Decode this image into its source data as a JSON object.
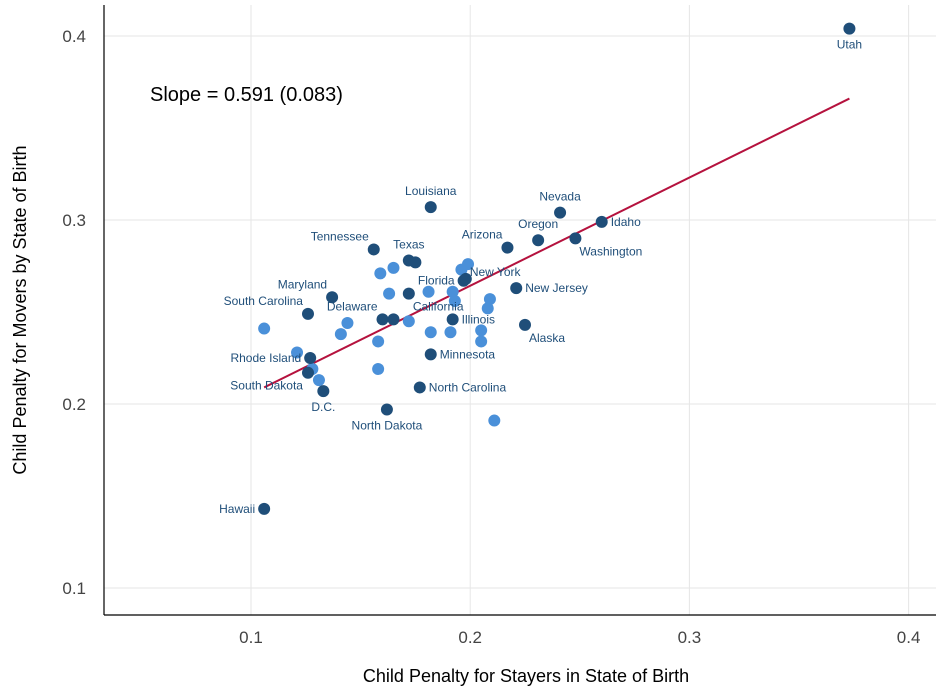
{
  "chart_data": {
    "type": "scatter",
    "title": "",
    "xlabel": "Child Penalty for Stayers in State of Birth",
    "ylabel": "Child Penalty for Movers by State of Birth",
    "xlim": [
      0.03,
      0.41
    ],
    "ylim": [
      0.08,
      0.415
    ],
    "x_ticks": [
      0.1,
      0.2,
      0.3,
      0.4
    ],
    "y_ticks": [
      0.1,
      0.2,
      0.3,
      0.4
    ],
    "x_tick_labels": [
      "0.1",
      "0.2",
      "0.3",
      "0.4"
    ],
    "y_tick_labels": [
      "0.1",
      "0.2",
      "0.3",
      "0.4"
    ],
    "grid": true,
    "annotation": "Slope = 0.591 (0.083)",
    "fit_line": {
      "x": [
        0.106,
        0.373
      ],
      "y": [
        0.209,
        0.366
      ],
      "color": "#b5123e"
    },
    "colors": {
      "labeled": "#1f4e79",
      "unlabeled": "#4a90d9",
      "label_text": "#1f4e79"
    },
    "labeled_points": [
      {
        "label": "Utah",
        "x": 0.373,
        "y": 0.404,
        "pos": "below"
      },
      {
        "label": "Louisiana",
        "x": 0.182,
        "y": 0.307,
        "pos": "above"
      },
      {
        "label": "Nevada",
        "x": 0.241,
        "y": 0.304,
        "pos": "above"
      },
      {
        "label": "Idaho",
        "x": 0.26,
        "y": 0.299,
        "pos": "right"
      },
      {
        "label": "Oregon",
        "x": 0.231,
        "y": 0.289,
        "pos": "above"
      },
      {
        "label": "Washington",
        "x": 0.248,
        "y": 0.29,
        "pos": "below-right"
      },
      {
        "label": "Arizona",
        "x": 0.217,
        "y": 0.285,
        "pos": "above-left"
      },
      {
        "label": "Tennessee",
        "x": 0.156,
        "y": 0.284,
        "pos": "above-left"
      },
      {
        "label": "Texas",
        "x": 0.172,
        "y": 0.278,
        "pos": "above"
      },
      {
        "label": "",
        "x": 0.175,
        "y": 0.277,
        "pos": "none"
      },
      {
        "label": "Florida",
        "x": 0.197,
        "y": 0.267,
        "pos": "left"
      },
      {
        "label": "New York",
        "x": 0.198,
        "y": 0.268,
        "pos": "right-up"
      },
      {
        "label": "New Jersey",
        "x": 0.221,
        "y": 0.263,
        "pos": "right"
      },
      {
        "label": "Maryland",
        "x": 0.137,
        "y": 0.258,
        "pos": "above-left"
      },
      {
        "label": "South Carolina",
        "x": 0.126,
        "y": 0.249,
        "pos": "above-left"
      },
      {
        "label": "Delaware",
        "x": 0.16,
        "y": 0.246,
        "pos": "above-left"
      },
      {
        "label": "",
        "x": 0.165,
        "y": 0.246,
        "pos": "none"
      },
      {
        "label": "California",
        "x": 0.172,
        "y": 0.26,
        "pos": "below-right"
      },
      {
        "label": "Illinois",
        "x": 0.192,
        "y": 0.246,
        "pos": "right"
      },
      {
        "label": "Alaska",
        "x": 0.225,
        "y": 0.243,
        "pos": "below-right"
      },
      {
        "label": "Minnesota",
        "x": 0.182,
        "y": 0.227,
        "pos": "right"
      },
      {
        "label": "Rhode Island",
        "x": 0.127,
        "y": 0.225,
        "pos": "left"
      },
      {
        "label": "South Dakota",
        "x": 0.126,
        "y": 0.217,
        "pos": "below-left"
      },
      {
        "label": "North Carolina",
        "x": 0.177,
        "y": 0.209,
        "pos": "right"
      },
      {
        "label": "D.C.",
        "x": 0.133,
        "y": 0.207,
        "pos": "below"
      },
      {
        "label": "North Dakota",
        "x": 0.162,
        "y": 0.197,
        "pos": "below"
      },
      {
        "label": "Hawaii",
        "x": 0.106,
        "y": 0.143,
        "pos": "left"
      }
    ],
    "unlabeled_points": [
      {
        "x": 0.106,
        "y": 0.241
      },
      {
        "x": 0.121,
        "y": 0.228
      },
      {
        "x": 0.128,
        "y": 0.219
      },
      {
        "x": 0.131,
        "y": 0.213
      },
      {
        "x": 0.141,
        "y": 0.238
      },
      {
        "x": 0.144,
        "y": 0.244
      },
      {
        "x": 0.158,
        "y": 0.234
      },
      {
        "x": 0.158,
        "y": 0.219
      },
      {
        "x": 0.159,
        "y": 0.271
      },
      {
        "x": 0.163,
        "y": 0.26
      },
      {
        "x": 0.165,
        "y": 0.274
      },
      {
        "x": 0.172,
        "y": 0.245
      },
      {
        "x": 0.181,
        "y": 0.261
      },
      {
        "x": 0.182,
        "y": 0.239
      },
      {
        "x": 0.191,
        "y": 0.239
      },
      {
        "x": 0.192,
        "y": 0.261
      },
      {
        "x": 0.193,
        "y": 0.256
      },
      {
        "x": 0.196,
        "y": 0.273
      },
      {
        "x": 0.199,
        "y": 0.276
      },
      {
        "x": 0.205,
        "y": 0.24
      },
      {
        "x": 0.205,
        "y": 0.234
      },
      {
        "x": 0.208,
        "y": 0.252
      },
      {
        "x": 0.209,
        "y": 0.257
      },
      {
        "x": 0.211,
        "y": 0.191
      }
    ]
  }
}
